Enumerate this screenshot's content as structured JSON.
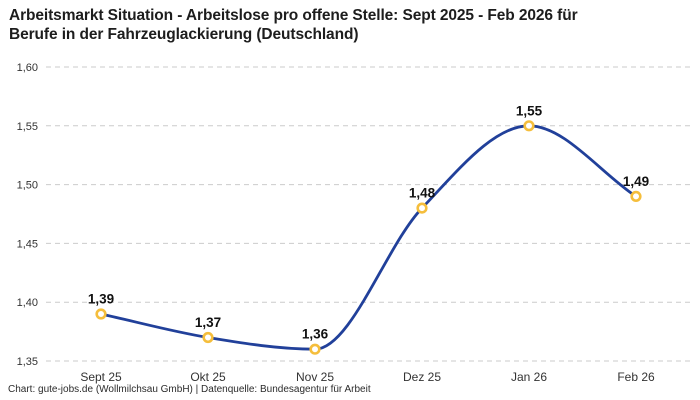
{
  "title": {
    "lines": [
      "Arbeitsmarkt Situation - Arbeitslose pro offene Stelle: Sept 2025 - Feb 2026 für",
      "Berufe in der Fahrzeuglackierung (Deutschland)"
    ],
    "full": "Arbeitsmarkt Situation - Arbeitslose pro offene Stelle: Sept 2025 - Feb 2026 für Berufe in der Fahrzeuglackierung (Deutschland)"
  },
  "footer": "Chart: gute-jobs.de (Wollmilchsau GmbH) | Datenquelle: Bundesagentur für Arbeit",
  "colors": {
    "line": "#21409a",
    "marker_ring": "#f5be3c",
    "marker_fill": "#ffffff",
    "gridline": "#cbcbcb",
    "title_text": "#1d1d1d",
    "axis_text": "#333333",
    "point_label_text": "#111111",
    "background": "#ffffff"
  },
  "chart_data": {
    "type": "line",
    "title": "Arbeitsmarkt Situation - Arbeitslose pro offene Stelle: Sept 2025 - Feb 2026 für Berufe in der Fahrzeuglackierung (Deutschland)",
    "categories": [
      "Sept 25",
      "Okt 25",
      "Nov 25",
      "Dez 25",
      "Jan 26",
      "Feb 26"
    ],
    "values": [
      1.39,
      1.37,
      1.36,
      1.48,
      1.55,
      1.49
    ],
    "point_labels": [
      "1,39",
      "1,37",
      "1,36",
      "1,48",
      "1,55",
      "1,49"
    ],
    "series_name": "Arbeitslose pro offene Stelle",
    "y_ticks": [
      1.35,
      1.4,
      1.45,
      1.5,
      1.55,
      1.6
    ],
    "y_tick_labels": [
      "1,35",
      "1,40",
      "1,45",
      "1,50",
      "1,55",
      "1,60"
    ],
    "ylim": [
      1.35,
      1.6
    ],
    "xlabel": "",
    "ylabel": "",
    "grid": "dashed-horizontal",
    "legend": "none",
    "curve": "monotone",
    "source": "Bundesagentur für Arbeit"
  }
}
